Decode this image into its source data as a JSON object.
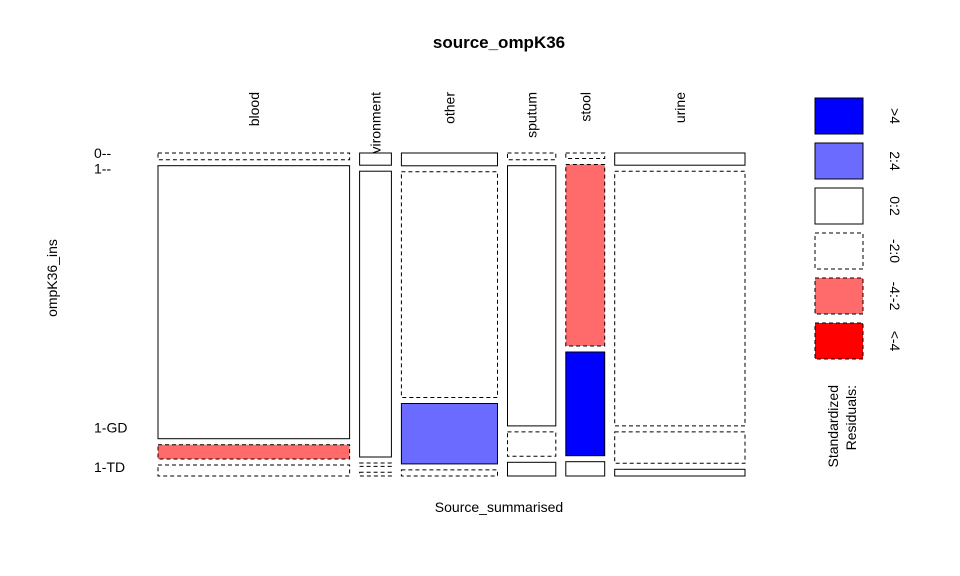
{
  "chart_data": {
    "type": "mosaic",
    "title": "source_ompK36",
    "xlabel": "Source_summarised",
    "ylabel": "ompK36_ins",
    "columns": [
      "blood",
      "environment",
      "other",
      "sputum",
      "stool",
      "urine"
    ],
    "column_labels": [
      "blood",
      "vironment",
      "other",
      "sputum",
      "stool",
      "urine"
    ],
    "rows": [
      "0",
      "1",
      "1-GD",
      "1-TD"
    ],
    "row_labels": [
      "0--",
      "1--",
      "1-GD",
      "1-TD"
    ],
    "column_widths": [
      0.325,
      0.054,
      0.163,
      0.082,
      0.066,
      0.221
    ],
    "cells": [
      [
        {
          "p": 0.022,
          "res": "-2:0"
        },
        {
          "p": 0.895,
          "res": "0:2"
        },
        {
          "p": 0.047,
          "res": "-4:-2"
        },
        {
          "p": 0.036,
          "res": "-2:0"
        }
      ],
      [
        {
          "p": 0.04,
          "res": "0:2"
        },
        {
          "p": 0.937,
          "res": "0:2"
        },
        {
          "p": 0.011,
          "res": "-2:0"
        },
        {
          "p": 0.012,
          "res": "-2:0"
        }
      ],
      [
        {
          "p": 0.042,
          "res": "0:2"
        },
        {
          "p": 0.74,
          "res": "-2:0"
        },
        {
          "p": 0.198,
          "res": "2:4"
        },
        {
          "p": 0.02,
          "res": "-2:0"
        }
      ],
      [
        {
          "p": 0.022,
          "res": "-2:0"
        },
        {
          "p": 0.853,
          "res": "0:2"
        },
        {
          "p": 0.08,
          "res": "-2:0"
        },
        {
          "p": 0.045,
          "res": "0:2"
        }
      ],
      [
        {
          "p": 0.018,
          "res": "-2:0"
        },
        {
          "p": 0.595,
          "res": "-4:-2"
        },
        {
          "p": 0.34,
          "res": ">4"
        },
        {
          "p": 0.047,
          "res": "0:2"
        }
      ],
      [
        {
          "p": 0.04,
          "res": "0:2"
        },
        {
          "p": 0.835,
          "res": "-2:0"
        },
        {
          "p": 0.103,
          "res": "-2:0"
        },
        {
          "p": 0.022,
          "res": "0:2"
        }
      ]
    ],
    "legend": {
      "title_lines": [
        "Standardized",
        "Residuals:"
      ],
      "placement": "right",
      "entries": [
        {
          "label": ">4",
          "color": "#0000ff",
          "border": "solid"
        },
        {
          "label": "2:4",
          "color": "#6b6bff",
          "border": "solid"
        },
        {
          "label": "0:2",
          "color": "#ffffff",
          "border": "solid"
        },
        {
          "label": "-2:0",
          "color": "#ffffff",
          "border": "dashed"
        },
        {
          "label": "-4:-2",
          "color": "#ff6b6b",
          "border": "dashed"
        },
        {
          "label": "<-4",
          "color": "#ff0000",
          "border": "dashed"
        }
      ]
    }
  }
}
